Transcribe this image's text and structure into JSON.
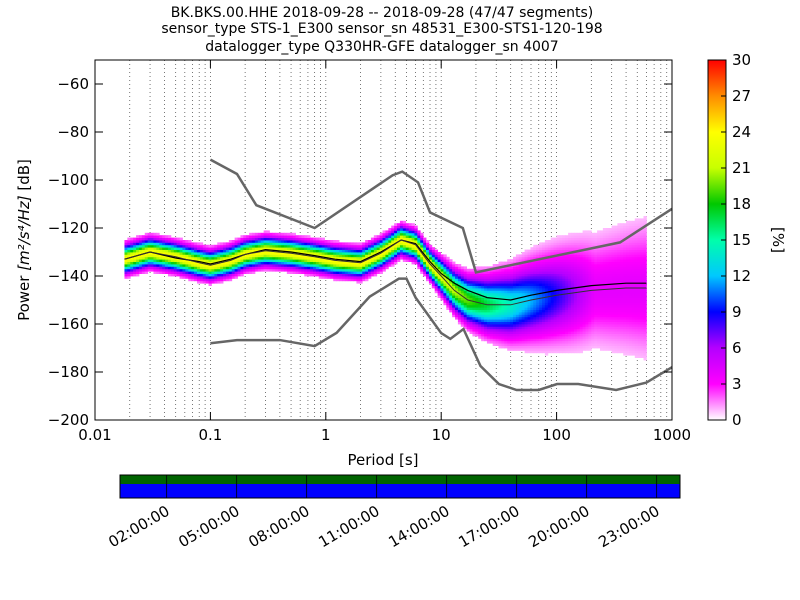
{
  "chart_data": {
    "type": "heatmap",
    "title": [
      "BK.BKS.00.HHE   2018-09-28 -- 2018-09-28  (47/47 segments)",
      "sensor_type STS-1_E300 sensor_sn 48531_E300-STS1-120-198",
      "datalogger_type Q330HR-GFE datalogger_sn 4007"
    ],
    "xlabel": "Period [s]",
    "ylabel_prefix": "Power ",
    "ylabel_units": "[m²/s⁴/Hz]",
    "ylabel_suffix": " [dB]",
    "x_scale": "log",
    "xlim": [
      0.01,
      1000
    ],
    "ylim": [
      -200,
      -50
    ],
    "x_tick_labels": [
      "0.01",
      "0.1",
      "1",
      "10",
      "100",
      "1000"
    ],
    "x_tick_values": [
      0.01,
      0.1,
      1,
      10,
      100,
      1000
    ],
    "y_tick_values": [
      -200,
      -180,
      -160,
      -140,
      -120,
      -100,
      -80,
      -60
    ],
    "y_tick_labels": [
      "−200",
      "−180",
      "−160",
      "−140",
      "−120",
      "−100",
      "−80",
      "−60"
    ],
    "grid": "dotted-vertical",
    "colorbar": {
      "label": "[%]",
      "range": [
        0,
        30
      ],
      "tick_values": [
        0,
        3,
        6,
        9,
        12,
        15,
        18,
        21,
        24,
        27,
        30
      ],
      "tick_labels": [
        "0",
        "3",
        "6",
        "9",
        "12",
        "15",
        "18",
        "21",
        "24",
        "27",
        "30"
      ],
      "colormap": [
        "#ffffff",
        "#ff00ff",
        "#b400ff",
        "#0000ff",
        "#00c8ff",
        "#00ffaa",
        "#00c800",
        "#c8ff00",
        "#ffff00",
        "#ff8c00",
        "#ff0000"
      ]
    },
    "series": [
      {
        "role": "noise-model-high",
        "x": [
          0.1,
          0.17,
          0.25,
          0.8,
          3.8,
          4.6,
          6.3,
          8.0,
          15.4,
          20.0,
          354.8,
          1000
        ],
        "y": [
          -91.5,
          -97.5,
          -110.5,
          -120.0,
          -98.0,
          -96.5,
          -101.0,
          -113.5,
          -120.0,
          -138.5,
          -126.0,
          -112.0
        ]
      },
      {
        "role": "noise-model-low",
        "x": [
          0.1,
          0.17,
          0.4,
          0.8,
          1.24,
          2.4,
          4.3,
          5.0,
          6.0,
          10.0,
          12.0,
          15.6,
          21.9,
          31.6,
          45.0,
          70.0,
          101.0,
          154.0,
          328.0,
          600.0,
          1000
        ],
        "y": [
          -168.0,
          -166.7,
          -166.7,
          -169.2,
          -163.7,
          -148.6,
          -141.1,
          -141.1,
          -149.0,
          -163.8,
          -166.2,
          -162.1,
          -177.5,
          -185.0,
          -187.5,
          -187.5,
          -185.0,
          -185.0,
          -187.5,
          -184.4,
          -178.0
        ]
      },
      {
        "role": "mean",
        "x": [
          0.018,
          0.03,
          0.05,
          0.08,
          0.1,
          0.15,
          0.2,
          0.3,
          0.5,
          0.8,
          1.2,
          2.0,
          3.0,
          4.5,
          6.0,
          8.0,
          10.0,
          13.0,
          17.0,
          25.0,
          40.0,
          60.0,
          100.0,
          200.0,
          400.0,
          600.0
        ],
        "y": [
          -133.0,
          -130.0,
          -132.5,
          -134.0,
          -135.0,
          -133.0,
          -131.0,
          -129.0,
          -130.0,
          -131.5,
          -133.0,
          -134.0,
          -130.0,
          -125.0,
          -126.5,
          -134.0,
          -139.0,
          -143.0,
          -146.0,
          -149.0,
          -150.0,
          -148.0,
          -146.0,
          -144.0,
          -143.0,
          -143.0
        ]
      },
      {
        "role": "mode",
        "x": [
          0.018,
          0.03,
          0.05,
          0.08,
          0.1,
          0.15,
          0.2,
          0.3,
          0.5,
          0.8,
          1.2,
          2.0,
          3.0,
          4.5,
          6.0,
          8.0,
          10.0,
          13.0,
          17.0,
          25.0,
          40.0,
          60.0,
          100.0,
          200.0,
          400.0,
          600.0
        ],
        "y": [
          -133.0,
          -130.0,
          -132.0,
          -134.5,
          -135.5,
          -133.5,
          -131.0,
          -129.5,
          -130.5,
          -132.0,
          -133.5,
          -134.5,
          -130.5,
          -125.0,
          -127.0,
          -135.0,
          -140.0,
          -146.0,
          -150.0,
          -152.0,
          -152.0,
          -150.0,
          -148.0,
          -146.0,
          -145.0,
          -145.0
        ]
      }
    ],
    "timeline": {
      "tick_labels": [
        "02:00:00",
        "05:00:00",
        "08:00:00",
        "11:00:00",
        "14:00:00",
        "17:00:00",
        "20:00:00",
        "23:00:00"
      ],
      "span_hours": [
        0,
        24
      ],
      "tick_hours": [
        2,
        5,
        8,
        11,
        14,
        17,
        20,
        23
      ],
      "top_color": "#006400",
      "bottom_color": "#0000ff"
    }
  }
}
